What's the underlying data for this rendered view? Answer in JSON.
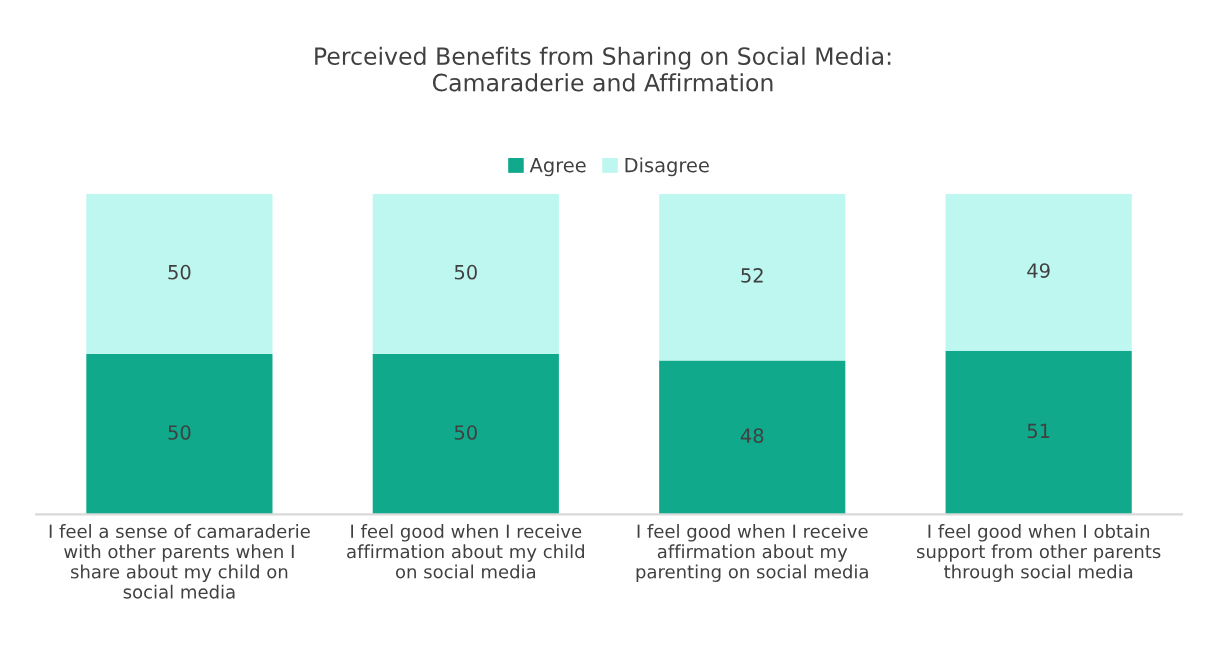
{
  "chart_data": {
    "type": "bar",
    "title": "Perceived Benefits from Sharing on Social Media:\nCamaraderie and Affirmation",
    "categories": [
      "I feel a sense of camaraderie\nwith other parents when I\nshare about my child on\nsocial media",
      "I feel good when I receive\naffirmation about my child\non social media",
      "I feel good when I receive\naffirmation about my\nparenting on social media",
      "I feel good when I obtain\nsupport from other parents\nthrough social media"
    ],
    "series": [
      {
        "name": "Agree",
        "color": "#10a98b",
        "values": [
          50,
          50,
          48,
          51
        ]
      },
      {
        "name": "Disagree",
        "color": "#bdf7f0",
        "values": [
          50,
          50,
          52,
          49
        ]
      }
    ],
    "stacked": true,
    "data_labels": true,
    "legend": "top",
    "grid": false,
    "tick_labels": "x"
  }
}
